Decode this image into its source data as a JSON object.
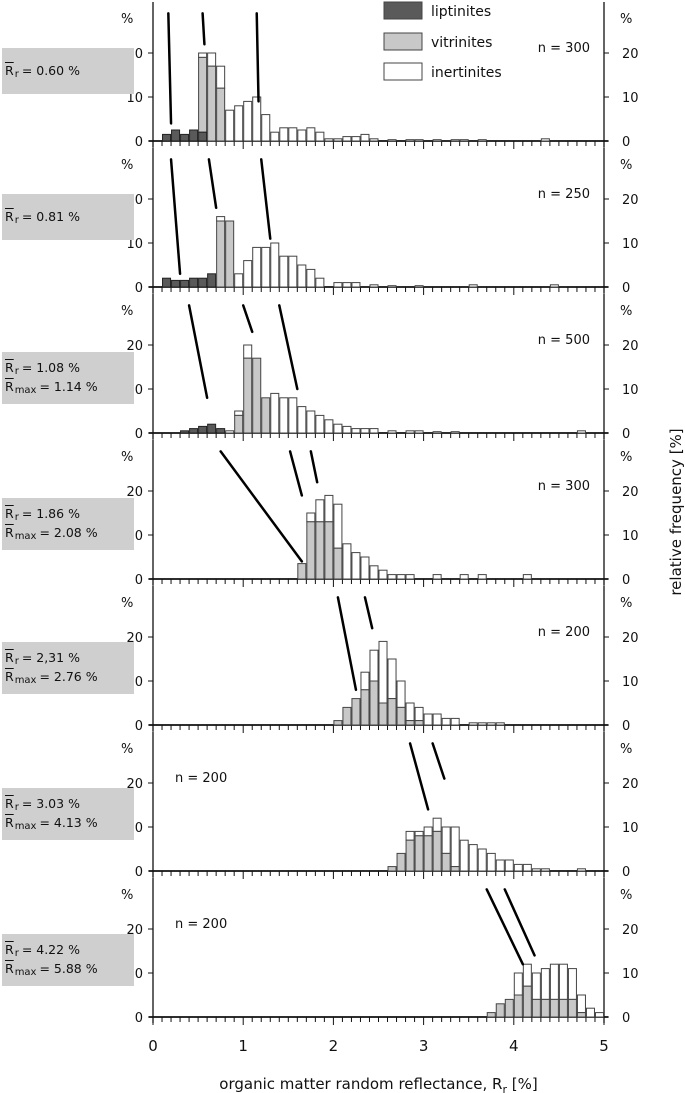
{
  "chart_data": {
    "type": "bar",
    "x_axis": {
      "label": "organic matter random reflectance, R",
      "label_sub": "r",
      "label_unit": " [%]",
      "range": [
        0,
        5
      ],
      "ticks": [
        "0",
        "1",
        "2",
        "3",
        "4",
        "5"
      ],
      "bin_width": 0.1
    },
    "y_axis": {
      "right_label": "relative frequency [%]",
      "unit_symbol": "%",
      "range": [
        0,
        25
      ],
      "ticks": [
        "0",
        "10",
        "20"
      ]
    },
    "legend": {
      "placement": "top-center",
      "items": [
        {
          "name": "liptinites",
          "color": "#5a5a5a"
        },
        {
          "name": "vitrinites",
          "color": "#c8c8c8"
        },
        {
          "name": "inertinites",
          "color": "#ffffff"
        }
      ]
    },
    "colors": {
      "liptinites": "#5a5a5a",
      "vitrinites": "#c8c8c8",
      "inertinites": "#ffffff",
      "edge": "#444444"
    },
    "panels": [
      {
        "n_label": "n = 300",
        "n_position": "right",
        "reflectance": [
          {
            "sym": "R",
            "sub": "r",
            "value": "= 0.60 %"
          }
        ],
        "bins": [
          [
            0.1,
            1.5,
            0,
            0
          ],
          [
            0.2,
            2.5,
            0,
            0
          ],
          [
            0.3,
            1.5,
            0,
            0
          ],
          [
            0.4,
            2.5,
            0,
            0
          ],
          [
            0.5,
            2.0,
            17,
            20
          ],
          [
            0.6,
            0,
            17,
            20
          ],
          [
            0.7,
            0,
            12,
            17
          ],
          [
            0.8,
            0,
            0,
            7
          ],
          [
            0.9,
            0,
            0,
            8
          ],
          [
            1.0,
            0,
            0,
            9
          ],
          [
            1.1,
            0,
            0,
            10
          ],
          [
            1.2,
            0,
            0,
            6
          ],
          [
            1.3,
            0,
            0,
            2
          ],
          [
            1.4,
            0,
            0,
            3
          ],
          [
            1.5,
            0,
            0,
            3
          ],
          [
            1.6,
            0,
            0,
            2.5
          ],
          [
            1.7,
            0,
            0,
            3
          ],
          [
            1.8,
            0,
            0,
            2
          ],
          [
            1.9,
            0,
            0,
            0.5
          ],
          [
            2.0,
            0,
            0,
            0.5
          ],
          [
            2.1,
            0,
            0,
            1
          ],
          [
            2.2,
            0,
            0,
            1
          ],
          [
            2.3,
            0,
            0,
            1.5
          ],
          [
            2.4,
            0,
            0,
            0.5
          ],
          [
            2.6,
            0,
            0,
            0.3
          ],
          [
            2.8,
            0,
            0,
            0.3
          ],
          [
            2.9,
            0,
            0,
            0.3
          ],
          [
            3.1,
            0,
            0,
            0.3
          ],
          [
            3.3,
            0,
            0,
            0.3
          ],
          [
            3.4,
            0,
            0,
            0.3
          ],
          [
            3.6,
            0,
            0,
            0.3
          ],
          [
            4.3,
            0,
            0,
            0.5
          ]
        ],
        "trend_lines": [
          [
            [
              0.17,
              29
            ],
            [
              0.2,
              4
            ]
          ],
          [
            [
              0.55,
              29
            ],
            [
              0.57,
              22
            ]
          ],
          [
            [
              1.15,
              29
            ],
            [
              1.17,
              9
            ]
          ]
        ]
      },
      {
        "n_label": "n = 250",
        "n_position": "right",
        "reflectance": [
          {
            "sym": "R",
            "sub": "r",
            "value": "= 0.81 %"
          }
        ],
        "bins": [
          [
            0.1,
            2,
            0,
            0
          ],
          [
            0.2,
            1.5,
            0,
            0
          ],
          [
            0.3,
            1.5,
            0,
            0
          ],
          [
            0.4,
            2.0,
            0,
            0
          ],
          [
            0.5,
            2.0,
            0,
            0
          ],
          [
            0.6,
            3.0,
            0,
            0
          ],
          [
            0.7,
            0,
            15,
            16
          ],
          [
            0.8,
            0,
            15,
            15
          ],
          [
            0.9,
            0,
            0,
            3
          ],
          [
            1.0,
            0,
            0,
            6
          ],
          [
            1.1,
            0,
            0,
            9
          ],
          [
            1.2,
            0,
            0,
            9
          ],
          [
            1.3,
            0,
            0,
            10
          ],
          [
            1.4,
            0,
            0,
            7
          ],
          [
            1.5,
            0,
            0,
            7
          ],
          [
            1.6,
            0,
            0,
            5
          ],
          [
            1.7,
            0,
            0,
            4
          ],
          [
            1.8,
            0,
            0,
            2
          ],
          [
            2.0,
            0,
            0,
            1
          ],
          [
            2.1,
            0,
            0,
            1
          ],
          [
            2.2,
            0,
            0,
            1
          ],
          [
            2.4,
            0,
            0,
            0.5
          ],
          [
            2.6,
            0,
            0,
            0.3
          ],
          [
            2.9,
            0,
            0,
            0.3
          ],
          [
            3.5,
            0,
            0,
            0.5
          ],
          [
            4.4,
            0,
            0,
            0.5
          ]
        ],
        "trend_lines": [
          [
            [
              0.2,
              29
            ],
            [
              0.3,
              3
            ]
          ],
          [
            [
              0.62,
              29
            ],
            [
              0.7,
              18
            ]
          ],
          [
            [
              1.2,
              29
            ],
            [
              1.3,
              11
            ]
          ]
        ]
      },
      {
        "n_label": "n = 500",
        "n_position": "right",
        "reflectance": [
          {
            "sym": "R",
            "sub": "r",
            "value": "= 1.08 %"
          },
          {
            "sym": "R",
            "sub": "max",
            "value": "= 1.14 %"
          }
        ],
        "bins": [
          [
            0.3,
            0.5,
            0,
            0
          ],
          [
            0.4,
            1.0,
            0,
            0
          ],
          [
            0.5,
            1.5,
            0,
            0
          ],
          [
            0.6,
            2.0,
            0,
            0
          ],
          [
            0.7,
            1.0,
            0,
            0
          ],
          [
            0.8,
            0,
            0,
            0.5
          ],
          [
            0.9,
            0,
            4,
            5
          ],
          [
            1.0,
            0,
            17,
            20
          ],
          [
            1.1,
            0,
            17,
            17
          ],
          [
            1.2,
            0,
            8,
            8
          ],
          [
            1.3,
            0,
            0,
            9
          ],
          [
            1.4,
            0,
            0,
            8
          ],
          [
            1.5,
            0,
            0,
            8
          ],
          [
            1.6,
            0,
            0,
            6
          ],
          [
            1.7,
            0,
            0,
            5
          ],
          [
            1.8,
            0,
            0,
            4
          ],
          [
            1.9,
            0,
            0,
            3
          ],
          [
            2.0,
            0,
            0,
            2
          ],
          [
            2.1,
            0,
            0,
            1.5
          ],
          [
            2.2,
            0,
            0,
            1
          ],
          [
            2.3,
            0,
            0,
            1
          ],
          [
            2.4,
            0,
            0,
            1
          ],
          [
            2.6,
            0,
            0,
            0.5
          ],
          [
            2.8,
            0,
            0,
            0.5
          ],
          [
            2.9,
            0,
            0,
            0.5
          ],
          [
            3.1,
            0,
            0,
            0.3
          ],
          [
            3.3,
            0,
            0,
            0.3
          ],
          [
            4.7,
            0,
            0,
            0.5
          ]
        ],
        "trend_lines": [
          [
            [
              0.4,
              29
            ],
            [
              0.6,
              8
            ]
          ],
          [
            [
              1.0,
              29
            ],
            [
              1.1,
              23
            ]
          ],
          [
            [
              1.4,
              29
            ],
            [
              1.6,
              10
            ]
          ]
        ]
      },
      {
        "n_label": "n = 300",
        "n_position": "right",
        "reflectance": [
          {
            "sym": "R",
            "sub": "r",
            "value": "= 1.86 %"
          },
          {
            "sym": "R",
            "sub": "max",
            "value": "= 2.08 %"
          }
        ],
        "bins": [
          [
            1.6,
            0,
            3.5,
            3.5
          ],
          [
            1.7,
            0,
            13,
            15
          ],
          [
            1.8,
            0,
            13,
            18
          ],
          [
            1.9,
            0,
            13,
            19
          ],
          [
            2.0,
            0,
            7,
            17
          ],
          [
            2.1,
            0,
            0,
            8
          ],
          [
            2.2,
            0,
            0,
            6
          ],
          [
            2.3,
            0,
            0,
            5
          ],
          [
            2.4,
            0,
            0,
            3
          ],
          [
            2.5,
            0,
            0,
            2
          ],
          [
            2.6,
            0,
            0,
            1
          ],
          [
            2.7,
            0,
            0,
            1
          ],
          [
            2.8,
            0,
            0,
            1
          ],
          [
            3.1,
            0,
            0,
            1
          ],
          [
            3.4,
            0,
            0,
            1
          ],
          [
            3.6,
            0,
            0,
            1
          ],
          [
            4.1,
            0,
            0,
            1
          ]
        ],
        "trend_lines": [
          [
            [
              0.75,
              29
            ],
            [
              1.65,
              4
            ]
          ],
          [
            [
              1.52,
              29
            ],
            [
              1.65,
              19
            ]
          ],
          [
            [
              1.75,
              29
            ],
            [
              1.82,
              22
            ]
          ]
        ]
      },
      {
        "n_label": "n = 200",
        "n_position": "right",
        "reflectance": [
          {
            "sym": "R",
            "sub": "r",
            "value": "= 2,31 %"
          },
          {
            "sym": "R",
            "sub": "max",
            "value": "= 2.76 %"
          }
        ],
        "bins": [
          [
            2.0,
            0,
            1,
            1
          ],
          [
            2.1,
            0,
            4,
            4
          ],
          [
            2.2,
            0,
            6,
            6
          ],
          [
            2.3,
            0,
            8,
            12
          ],
          [
            2.4,
            0,
            10,
            17
          ],
          [
            2.5,
            0,
            5,
            19
          ],
          [
            2.6,
            0,
            6,
            15
          ],
          [
            2.7,
            0,
            4,
            10
          ],
          [
            2.8,
            0,
            1,
            5
          ],
          [
            2.9,
            0,
            1,
            4
          ],
          [
            3.0,
            0,
            0,
            2.5
          ],
          [
            3.1,
            0,
            0,
            2.5
          ],
          [
            3.2,
            0,
            0,
            1.5
          ],
          [
            3.3,
            0,
            0,
            1.5
          ],
          [
            3.5,
            0,
            0,
            0.5
          ],
          [
            3.6,
            0,
            0,
            0.5
          ],
          [
            3.7,
            0,
            0,
            0.5
          ],
          [
            3.8,
            0,
            0,
            0.5
          ]
        ],
        "trend_lines": [
          [
            [
              2.05,
              29
            ],
            [
              2.25,
              8
            ]
          ],
          [
            [
              2.35,
              29
            ],
            [
              2.43,
              22
            ]
          ]
        ]
      },
      {
        "n_label": "n = 200",
        "n_position": "left",
        "reflectance": [
          {
            "sym": "R",
            "sub": "r",
            "value": "= 3.03 %"
          },
          {
            "sym": "R",
            "sub": "max",
            "value": "= 4.13 %"
          }
        ],
        "bins": [
          [
            2.6,
            0,
            1,
            1
          ],
          [
            2.7,
            0,
            4,
            4
          ],
          [
            2.8,
            0,
            7,
            9
          ],
          [
            2.9,
            0,
            8,
            9
          ],
          [
            3.0,
            0,
            8,
            10
          ],
          [
            3.1,
            0,
            9,
            12
          ],
          [
            3.2,
            0,
            4,
            10
          ],
          [
            3.3,
            0,
            1,
            10
          ],
          [
            3.4,
            0,
            0,
            7
          ],
          [
            3.5,
            0,
            0,
            6
          ],
          [
            3.6,
            0,
            0,
            5
          ],
          [
            3.7,
            0,
            0,
            4
          ],
          [
            3.8,
            0,
            0,
            2.5
          ],
          [
            3.9,
            0,
            0,
            2.5
          ],
          [
            4.0,
            0,
            0,
            1.5
          ],
          [
            4.1,
            0,
            0,
            1.5
          ],
          [
            4.2,
            0,
            0,
            0.5
          ],
          [
            4.3,
            0,
            0,
            0.5
          ],
          [
            4.7,
            0,
            0,
            0.5
          ]
        ],
        "trend_lines": [
          [
            [
              2.85,
              29
            ],
            [
              3.05,
              14
            ]
          ],
          [
            [
              3.1,
              29
            ],
            [
              3.23,
              21
            ]
          ]
        ]
      },
      {
        "n_label": "n = 200",
        "n_position": "left",
        "reflectance": [
          {
            "sym": "R",
            "sub": "r",
            "value": "= 4.22 %"
          },
          {
            "sym": "R",
            "sub": "max",
            "value": "= 5.88 %"
          }
        ],
        "bins": [
          [
            3.7,
            0,
            1,
            1
          ],
          [
            3.8,
            0,
            3,
            3
          ],
          [
            3.9,
            0,
            4,
            4
          ],
          [
            4.0,
            0,
            5,
            10
          ],
          [
            4.1,
            0,
            7,
            12
          ],
          [
            4.2,
            0,
            4,
            10
          ],
          [
            4.3,
            0,
            4,
            11
          ],
          [
            4.4,
            0,
            4,
            12
          ],
          [
            4.5,
            0,
            4,
            12
          ],
          [
            4.6,
            0,
            4,
            11
          ],
          [
            4.7,
            0,
            1,
            5
          ],
          [
            4.8,
            0,
            0,
            2
          ],
          [
            4.9,
            0,
            0,
            1
          ]
        ],
        "trend_lines": [
          [
            [
              3.7,
              29
            ],
            [
              4.1,
              12
            ]
          ],
          [
            [
              3.9,
              29
            ],
            [
              4.23,
              14
            ]
          ]
        ]
      }
    ]
  }
}
